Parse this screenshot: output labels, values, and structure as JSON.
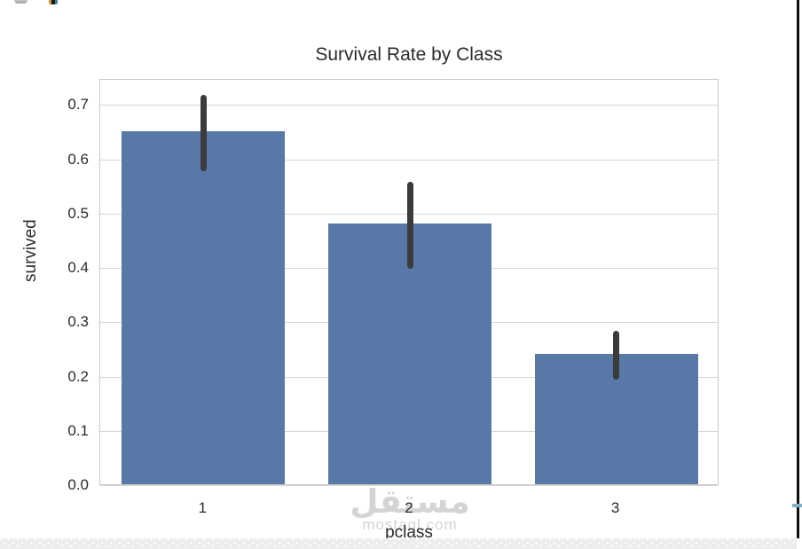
{
  "chart_data": {
    "type": "bar",
    "title": "Survival Rate by Class",
    "xlabel": "pclass",
    "ylabel": "survived",
    "categories": [
      "1",
      "2",
      "3"
    ],
    "values": [
      0.65,
      0.48,
      0.24
    ],
    "error_bars": [
      [
        0.58,
        0.72
      ],
      [
        0.4,
        0.56
      ],
      [
        0.195,
        0.285
      ]
    ],
    "yticks": [
      0.0,
      0.1,
      0.2,
      0.3,
      0.4,
      0.5,
      0.6,
      0.7
    ],
    "ylim": [
      0,
      0.748
    ],
    "grid": "horizontal",
    "legend": "none",
    "bar_color": "#5878a8",
    "error_color": "#3b3b3b",
    "grid_color": "#d6d6d6",
    "spine_color": "#c9c9c9",
    "text_color": "#2b2b2b"
  },
  "watermark": {
    "arabic": "مستقل",
    "domain": "mostaql.com",
    "color": "#d4d4d4"
  },
  "decorations": {
    "right_edge_line_color": "#101010",
    "scroll_marker_color": "#7fafc9",
    "bottom_strip_color": "#ededed"
  }
}
